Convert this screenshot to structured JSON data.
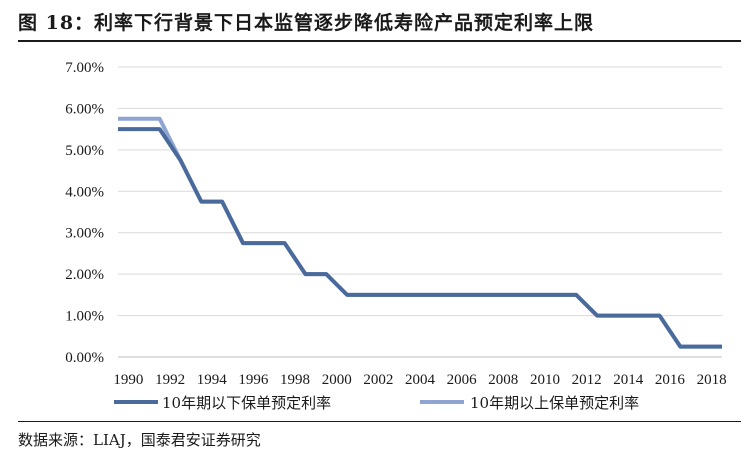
{
  "figure": {
    "title": "图 18：利率下行背景下日本监管逐步降低寿险产品预定利率上限",
    "source": "数据来源：LIAJ，国泰君安证券研究"
  },
  "chart_data": {
    "type": "line",
    "title": "",
    "xlabel": "",
    "ylabel": "",
    "ylim": [
      0,
      0.07
    ],
    "y_ticks": [
      "0.00%",
      "1.00%",
      "2.00%",
      "3.00%",
      "4.00%",
      "5.00%",
      "6.00%",
      "7.00%"
    ],
    "x_ticks": [
      "1990",
      "1992",
      "1994",
      "1996",
      "1998",
      "2000",
      "2002",
      "2004",
      "2006",
      "2008",
      "2010",
      "2012",
      "2014",
      "2016",
      "2018"
    ],
    "x_range": [
      1990,
      2019
    ],
    "grid": true,
    "legend_position": "bottom",
    "series": [
      {
        "name": "10年期以下保单预定利率",
        "color": "#4a6a9c",
        "points": [
          [
            1990,
            0.055
          ],
          [
            1992,
            0.055
          ],
          [
            1993,
            0.0475
          ],
          [
            1994,
            0.0375
          ],
          [
            1995,
            0.0375
          ],
          [
            1996,
            0.0275
          ],
          [
            1997,
            0.0275
          ],
          [
            1998,
            0.0275
          ],
          [
            1999,
            0.02
          ],
          [
            2000,
            0.02
          ],
          [
            2001,
            0.015
          ],
          [
            2002,
            0.015
          ],
          [
            2012,
            0.015
          ],
          [
            2013,
            0.01
          ],
          [
            2016,
            0.01
          ],
          [
            2017,
            0.0025
          ],
          [
            2019,
            0.0025
          ]
        ]
      },
      {
        "name": "10年期以上保单预定利率",
        "color": "#8ea4d2",
        "points": [
          [
            1990,
            0.0575
          ],
          [
            1992,
            0.0575
          ],
          [
            1993,
            0.0475
          ],
          [
            1994,
            0.0375
          ],
          [
            1995,
            0.0375
          ],
          [
            1996,
            0.0275
          ],
          [
            1997,
            0.0275
          ],
          [
            1998,
            0.0275
          ],
          [
            1999,
            0.02
          ],
          [
            2000,
            0.02
          ],
          [
            2001,
            0.015
          ],
          [
            2002,
            0.015
          ],
          [
            2012,
            0.015
          ],
          [
            2013,
            0.01
          ],
          [
            2016,
            0.01
          ],
          [
            2017,
            0.0025
          ],
          [
            2019,
            0.0025
          ]
        ]
      }
    ]
  }
}
